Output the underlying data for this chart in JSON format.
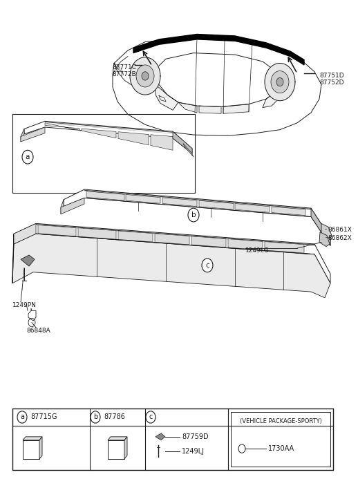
{
  "bg_color": "#ffffff",
  "lc": "#1a1a1a",
  "tc": "#1a1a1a",
  "labels": {
    "car_left_1": "87771C",
    "car_left_2": "87772B",
    "car_right_1": "87751D",
    "car_right_2": "87752D",
    "bolt_right_1": "86861X",
    "bolt_right_2": "86862X",
    "bolt_mid": "1249LG",
    "bolt_pn": "1249PN",
    "bolt_a": "86848A",
    "part_a_code": "87715G",
    "part_b_code": "87786",
    "part_87759D": "87759D",
    "part_1249LJ": "1249LJ",
    "part_1730AA": "1730AA",
    "vehicle_package": "(VEHICLE PACKAGE-SPORTY)"
  }
}
